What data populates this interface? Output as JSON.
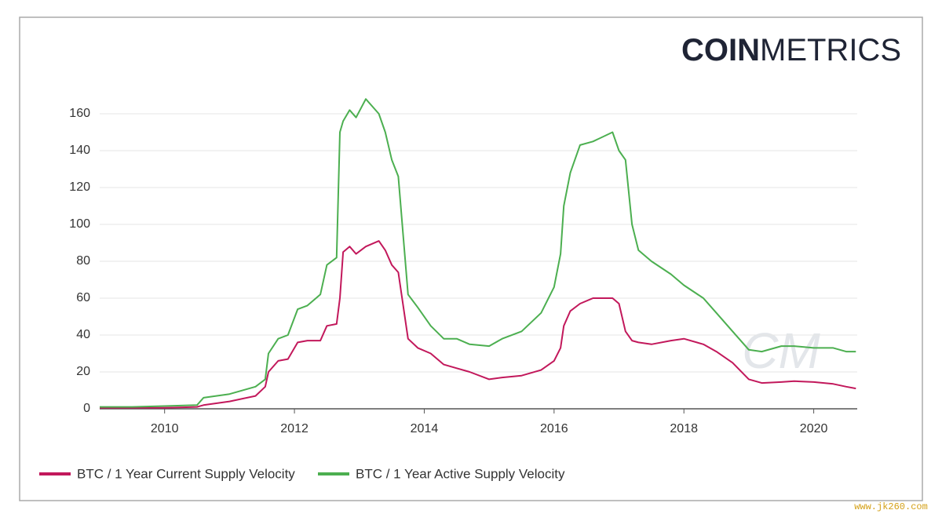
{
  "chart_data": {
    "type": "line",
    "logo_bold": "COIN",
    "logo_light": "METRICS",
    "watermark": "CM",
    "source_watermark": "www.jk260.com",
    "x": [
      2009.0,
      2009.5,
      2010.0,
      2010.5,
      2010.6,
      2011.0,
      2011.4,
      2011.55,
      2011.6,
      2011.75,
      2011.9,
      2012.05,
      2012.2,
      2012.4,
      2012.5,
      2012.65,
      2012.7,
      2012.75,
      2012.85,
      2012.95,
      2013.1,
      2013.3,
      2013.4,
      2013.5,
      2013.6,
      2013.75,
      2013.9,
      2014.1,
      2014.3,
      2014.5,
      2014.7,
      2015.0,
      2015.2,
      2015.5,
      2015.8,
      2016.0,
      2016.1,
      2016.15,
      2016.25,
      2016.4,
      2016.6,
      2016.9,
      2017.0,
      2017.1,
      2017.2,
      2017.3,
      2017.5,
      2017.8,
      2018.0,
      2018.3,
      2018.5,
      2018.75,
      2019.0,
      2019.2,
      2019.5,
      2019.7,
      2020.0,
      2020.3,
      2020.5,
      2020.65
    ],
    "series": [
      {
        "name": "BTC / 1 Year Current Supply Velocity",
        "color": "#c2185b",
        "values": [
          0.5,
          0.5,
          0.5,
          1,
          2,
          4,
          7,
          12,
          20,
          26,
          27,
          36,
          37,
          37,
          45,
          46,
          60,
          85,
          88,
          84,
          88,
          91,
          86,
          78,
          74,
          38,
          33,
          30,
          24,
          22,
          20,
          16,
          17,
          18,
          21,
          26,
          33,
          45,
          53,
          57,
          60,
          60,
          57,
          42,
          37,
          36,
          35,
          37,
          38,
          35,
          31,
          25,
          16,
          14,
          14.5,
          15,
          14.5,
          13.5,
          12,
          11
        ]
      },
      {
        "name": "BTC / 1 Year Active Supply Velocity",
        "color": "#4caf50",
        "values": [
          1,
          1,
          1.5,
          2,
          6,
          8,
          12,
          16,
          30,
          38,
          40,
          54,
          56,
          62,
          78,
          82,
          150,
          156,
          162,
          158,
          168,
          160,
          150,
          135,
          126,
          62,
          55,
          45,
          38,
          38,
          35,
          34,
          38,
          42,
          52,
          66,
          84,
          110,
          128,
          143,
          145,
          150,
          140,
          135,
          100,
          86,
          80,
          73,
          67,
          60,
          52,
          42,
          32,
          31,
          34,
          34,
          33,
          33,
          31,
          31
        ]
      }
    ],
    "xlim": [
      2009.0,
      2020.67
    ],
    "xticks": [
      2010,
      2012,
      2014,
      2016,
      2018,
      2020
    ],
    "ylim": [
      0,
      160
    ],
    "yticks": [
      0,
      20,
      40,
      60,
      80,
      100,
      120,
      140,
      160
    ],
    "grid": true
  }
}
